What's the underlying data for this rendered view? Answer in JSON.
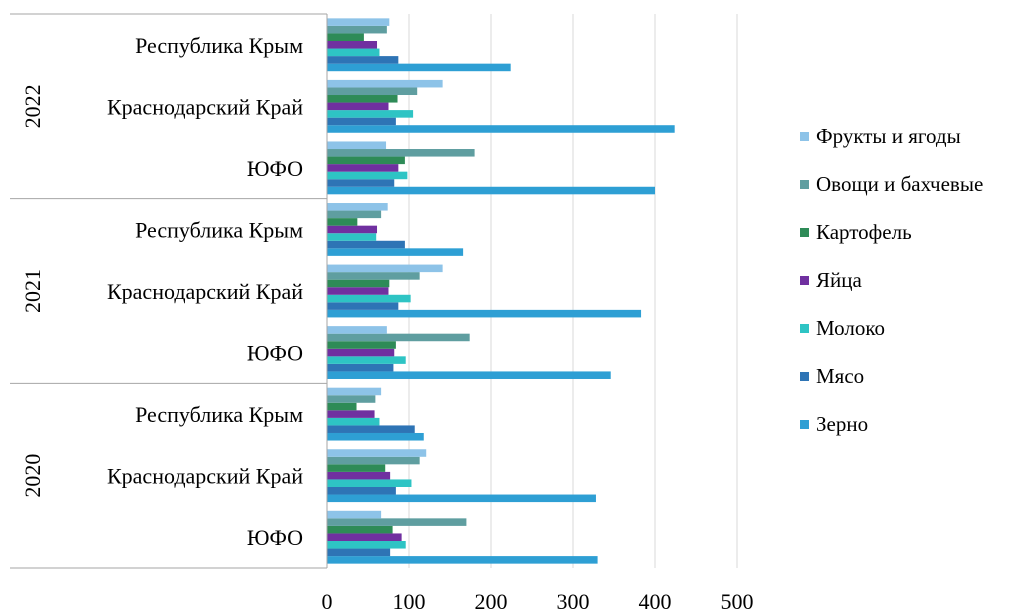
{
  "chart_data": {
    "type": "bar",
    "orientation": "horizontal",
    "title": "",
    "xlabel": "",
    "ylabel": "",
    "xlim": [
      0,
      500
    ],
    "x_ticks": [
      "0",
      "100",
      "200",
      "300",
      "400",
      "500"
    ],
    "grid": "vertical",
    "legend_position": "right",
    "groups": [
      {
        "label": "2020",
        "categories": [
          "ЮФО",
          "Краснодарский Край",
          "Республика Крым"
        ]
      },
      {
        "label": "2021",
        "categories": [
          "ЮФО",
          "Краснодарский Край",
          "Республика Крым"
        ]
      },
      {
        "label": "2022",
        "categories": [
          "ЮФО",
          "Краснодарский Край",
          "Республика Крым"
        ]
      }
    ],
    "series": [
      {
        "name": "Зерно",
        "color": "#2E9FD4",
        "values": [
          330,
          328,
          118,
          346,
          383,
          166,
          400,
          424,
          224
        ]
      },
      {
        "name": "Мясо",
        "color": "#2E74B5",
        "values": [
          77,
          84,
          107,
          81,
          87,
          95,
          82,
          84,
          87
        ]
      },
      {
        "name": "Молоко",
        "color": "#2EC4C4",
        "values": [
          96,
          103,
          64,
          96,
          102,
          60,
          98,
          105,
          64
        ]
      },
      {
        "name": "Яйца",
        "color": "#7030A0",
        "values": [
          91,
          77,
          58,
          82,
          75,
          61,
          87,
          75,
          61
        ]
      },
      {
        "name": "Картофель",
        "color": "#2E8B57",
        "values": [
          80,
          71,
          36,
          84,
          76,
          37,
          95,
          86,
          45
        ]
      },
      {
        "name": "Овощи и бахчевые",
        "color": "#5F9EA0",
        "values": [
          170,
          113,
          59,
          174,
          113,
          66,
          180,
          110,
          73
        ]
      },
      {
        "name": "Фрукты и ягоды",
        "color": "#8DC3E8",
        "values": [
          66,
          121,
          66,
          73,
          141,
          74,
          72,
          141,
          76
        ]
      }
    ]
  }
}
